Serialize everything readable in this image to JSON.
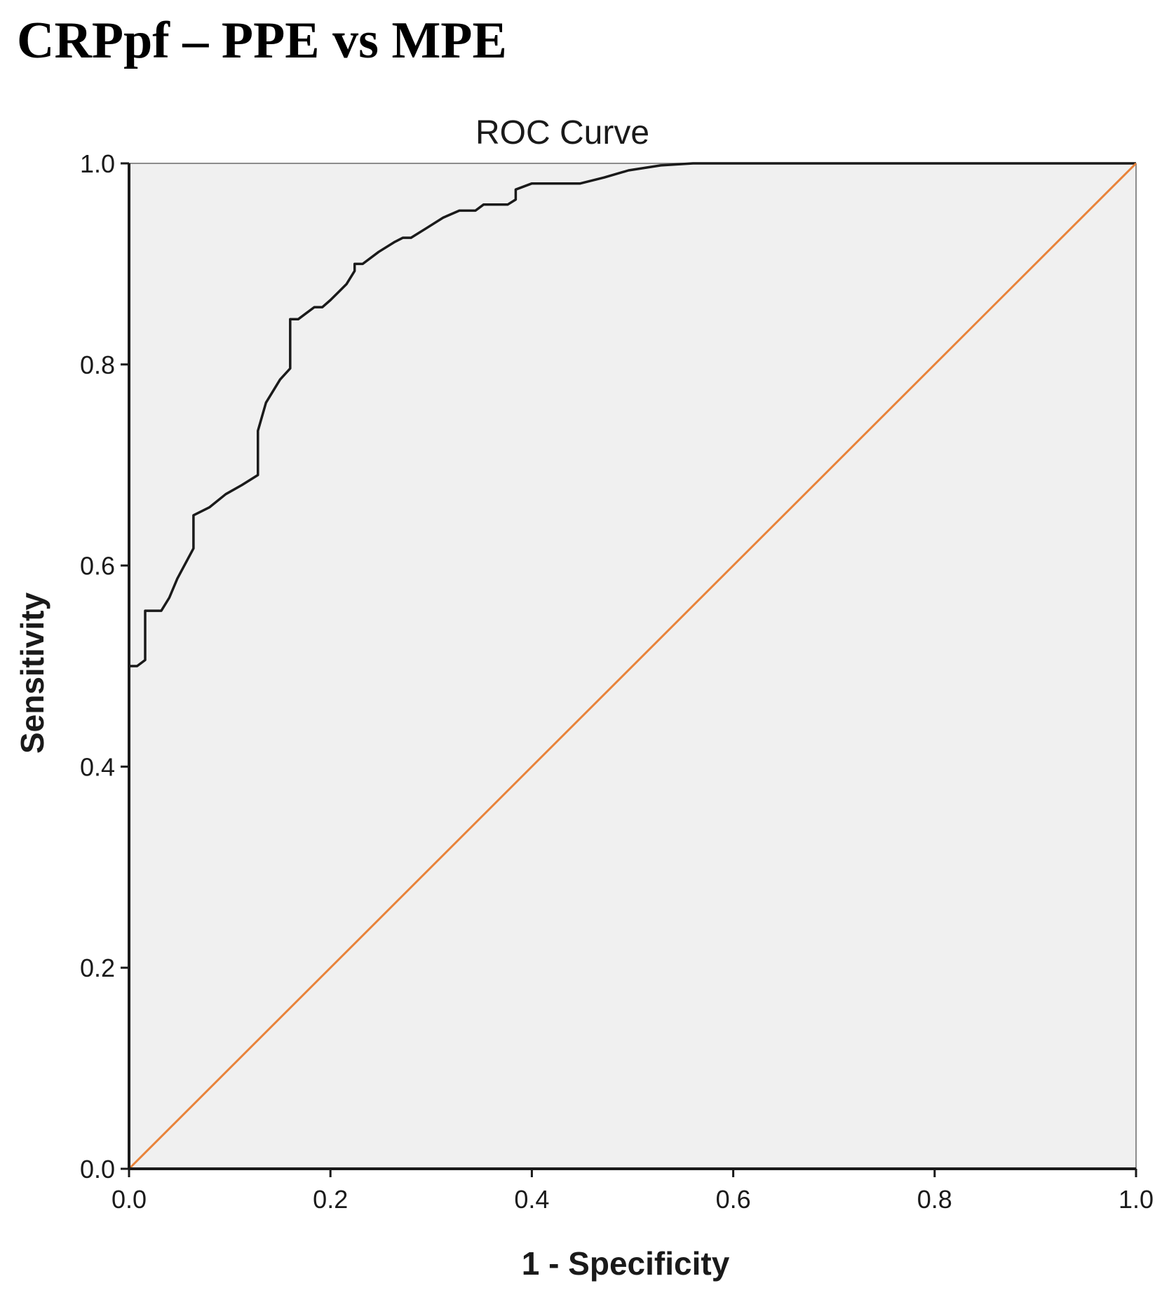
{
  "header": {
    "title": "CRPpf – PPE vs MPE"
  },
  "chart_data": {
    "type": "line",
    "title": "ROC Curve",
    "xlabel": "1 - Specificity",
    "ylabel": "Sensitivity",
    "xlim": [
      0,
      1
    ],
    "ylim": [
      0,
      1
    ],
    "xticks": [
      "0.0",
      "0.2",
      "0.4",
      "0.6",
      "0.8",
      "1.0"
    ],
    "yticks": [
      "0.0",
      "0.2",
      "0.4",
      "0.6",
      "0.8",
      "1.0"
    ],
    "grid": false,
    "legend": "none",
    "plot_background": "#f0f0f0",
    "series": [
      {
        "color": "#1a1a1a",
        "x": [
          0.0,
          0.0,
          0.008,
          0.016,
          0.016,
          0.032,
          0.04,
          0.048,
          0.064,
          0.064,
          0.08,
          0.096,
          0.112,
          0.128,
          0.128,
          0.136,
          0.15,
          0.16,
          0.16,
          0.168,
          0.176,
          0.184,
          0.192,
          0.2,
          0.208,
          0.216,
          0.224,
          0.224,
          0.232,
          0.248,
          0.264,
          0.272,
          0.28,
          0.296,
          0.312,
          0.328,
          0.344,
          0.352,
          0.368,
          0.376,
          0.384,
          0.384,
          0.4,
          0.424,
          0.448,
          0.472,
          0.496,
          0.528,
          0.56,
          0.6,
          0.7,
          0.8,
          0.9,
          1.0
        ],
        "y": [
          0.0,
          0.5,
          0.5,
          0.506,
          0.555,
          0.555,
          0.568,
          0.587,
          0.617,
          0.65,
          0.658,
          0.671,
          0.68,
          0.69,
          0.734,
          0.762,
          0.785,
          0.796,
          0.845,
          0.845,
          0.851,
          0.857,
          0.857,
          0.864,
          0.872,
          0.88,
          0.893,
          0.9,
          0.9,
          0.912,
          0.922,
          0.926,
          0.926,
          0.936,
          0.946,
          0.953,
          0.953,
          0.959,
          0.959,
          0.959,
          0.964,
          0.974,
          0.98,
          0.98,
          0.98,
          0.986,
          0.993,
          0.998,
          1.0,
          1.0,
          1.0,
          1.0,
          1.0,
          1.0
        ]
      },
      {
        "color": "#e8833a",
        "x": [
          0.0,
          1.0
        ],
        "y": [
          0.0,
          1.0
        ]
      }
    ]
  }
}
